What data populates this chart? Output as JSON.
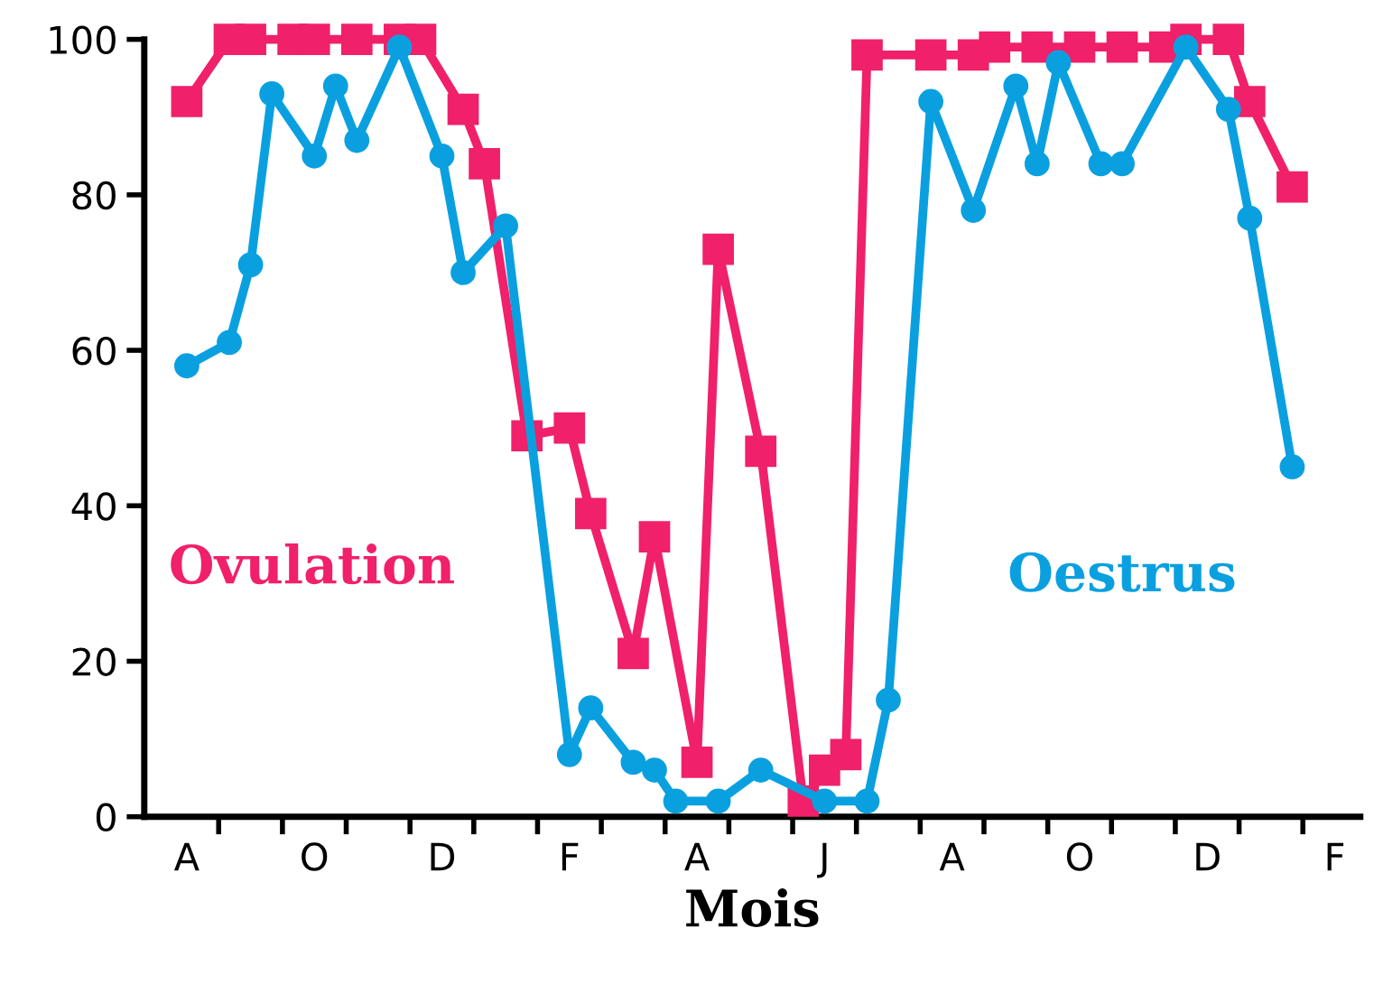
{
  "chart_data": {
    "type": "line",
    "xlabel": "Mois",
    "categories": [
      null,
      "A",
      null,
      null,
      null,
      null,
      null,
      "O",
      null,
      null,
      null,
      null,
      null,
      "D",
      null,
      null,
      null,
      null,
      null,
      "F",
      null,
      null,
      null,
      null,
      null,
      "A",
      null,
      null,
      null,
      null,
      null,
      "J",
      null,
      null,
      null,
      null,
      null,
      "A",
      null,
      null,
      null,
      null,
      null,
      "O",
      null,
      null,
      null,
      null,
      null,
      "D",
      null,
      null,
      null,
      null,
      null,
      "F",
      null
    ],
    "ylim": [
      0,
      100
    ],
    "yticks": [
      0,
      20,
      40,
      60,
      80,
      100
    ],
    "grid": false,
    "legend": false,
    "line_style": "solid",
    "series": [
      {
        "name": "Ovulation",
        "color": "#f0206a",
        "marker": "square",
        "values": [
          null,
          92,
          null,
          100,
          100,
          null,
          100,
          100,
          null,
          100,
          null,
          100,
          100,
          null,
          91,
          84,
          null,
          49,
          null,
          50,
          39,
          null,
          21,
          36,
          null,
          7,
          73,
          null,
          47,
          null,
          2,
          6,
          8,
          98,
          null,
          null,
          98,
          null,
          98,
          99,
          null,
          99,
          null,
          99,
          null,
          99,
          null,
          99,
          100,
          null,
          100,
          92,
          null,
          81,
          null,
          null,
          null
        ]
      },
      {
        "name": "Oestrus",
        "color": "#0aa0e0",
        "marker": "circle",
        "values": [
          null,
          58,
          null,
          61,
          71,
          93,
          null,
          85,
          94,
          87,
          null,
          99,
          null,
          85,
          70,
          null,
          76,
          null,
          null,
          8,
          14,
          null,
          7,
          6,
          2,
          null,
          2,
          null,
          6,
          null,
          null,
          2,
          null,
          2,
          15,
          null,
          92,
          null,
          78,
          null,
          94,
          84,
          97,
          null,
          84,
          84,
          null,
          null,
          99,
          null,
          91,
          77,
          null,
          45,
          null,
          null,
          null
        ]
      }
    ]
  }
}
